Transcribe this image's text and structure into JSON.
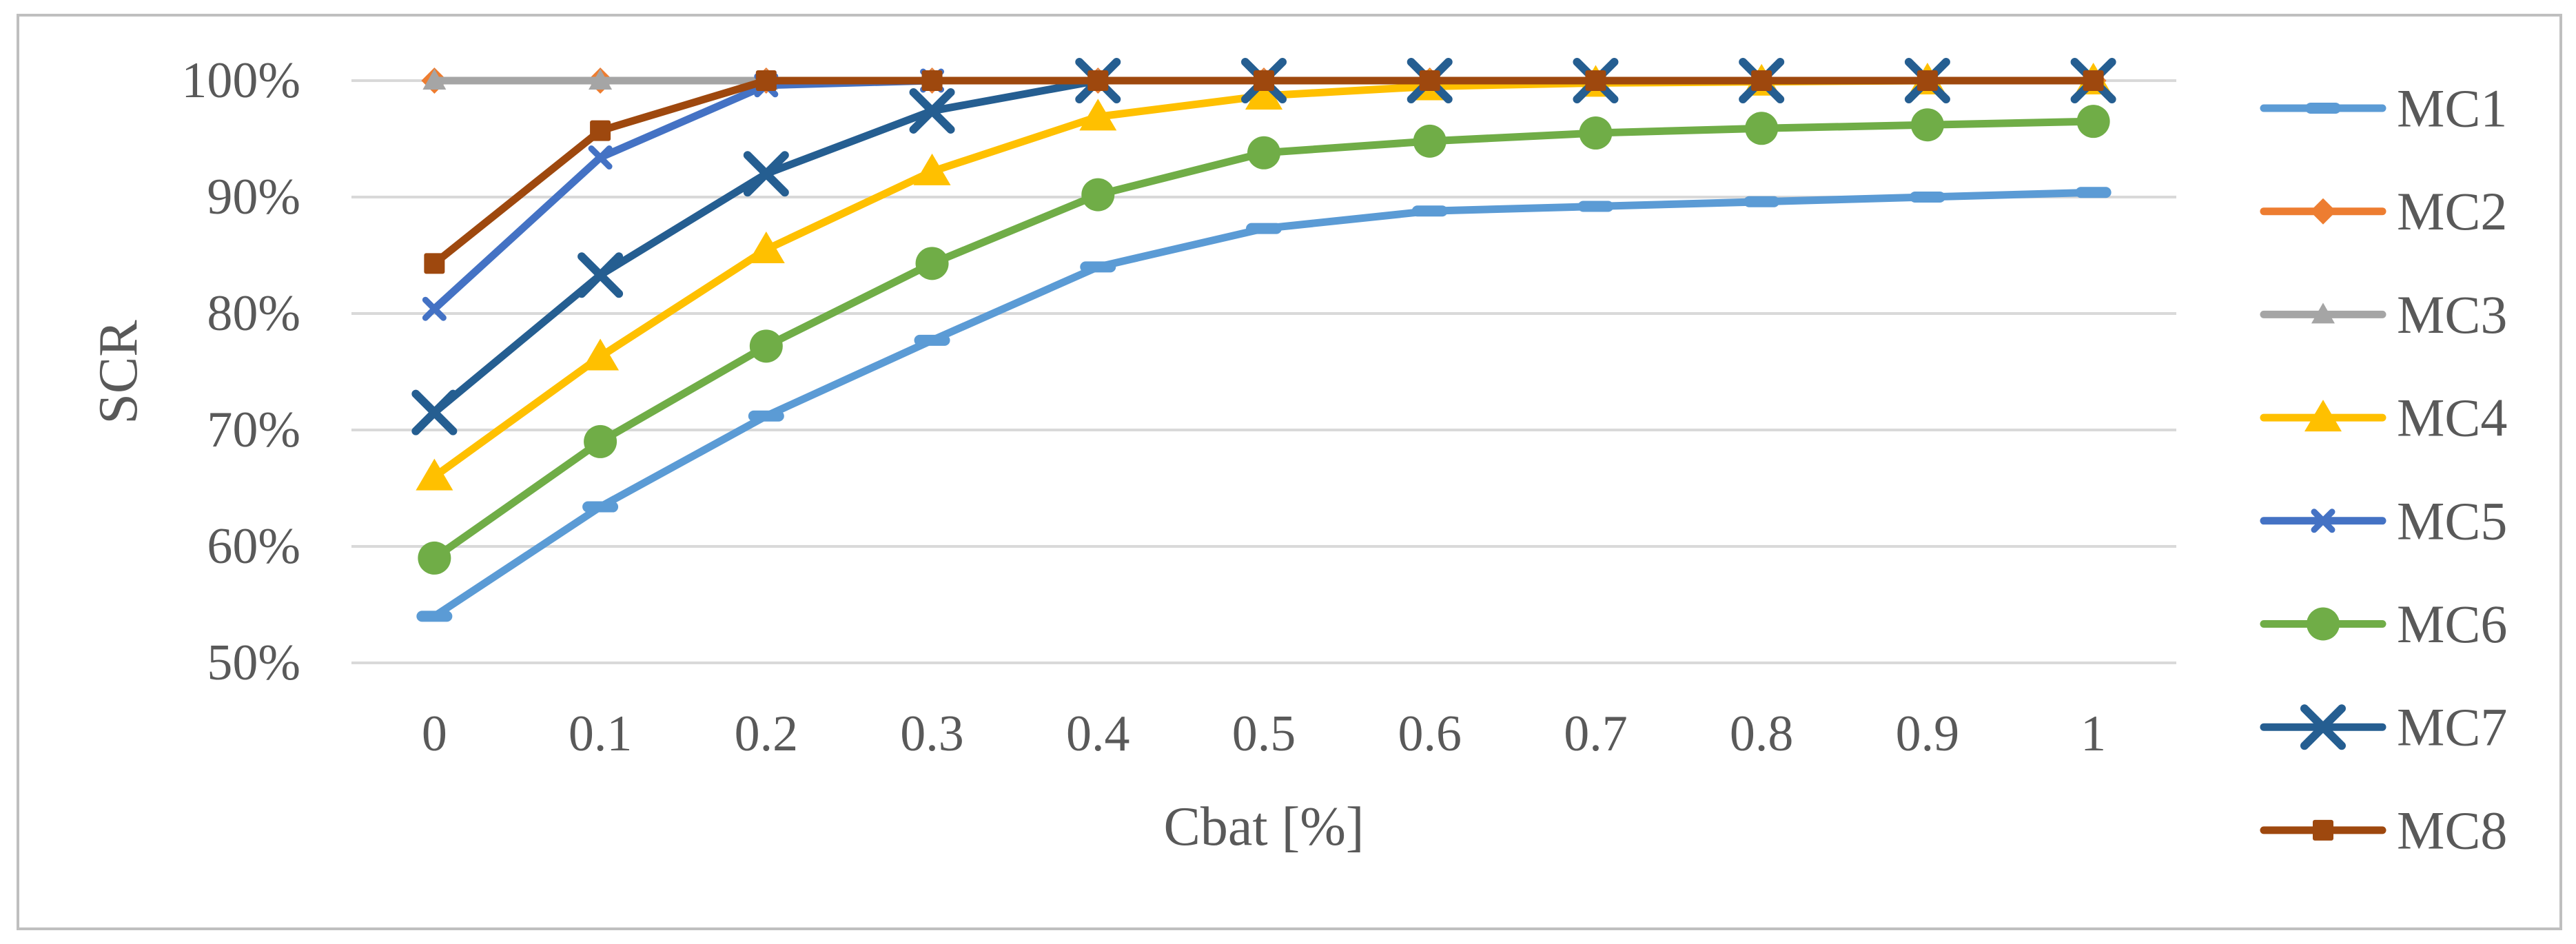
{
  "chart_data": {
    "type": "line",
    "title": "",
    "xlabel": "Cbat [%]",
    "ylabel": "SCR",
    "x_categories": [
      0,
      0.1,
      0.2,
      0.3,
      0.4,
      0.5,
      0.6,
      0.7,
      0.8,
      0.9,
      1
    ],
    "x_tick_labels": [
      "0",
      "0.1",
      "0.2",
      "0.3",
      "0.4",
      "0.5",
      "0.6",
      "0.7",
      "0.8",
      "0.9",
      "1"
    ],
    "y_tick_labels": [
      "100%",
      "90%",
      "80%",
      "70%",
      "60%",
      "50%"
    ],
    "y_gridline_values": [
      100,
      90,
      80,
      70,
      60,
      50
    ],
    "ylim": [
      50,
      100
    ],
    "grid": "horizontal",
    "legend_position": "right",
    "series": [
      {
        "name": "MC1",
        "color": "#5B9BD5",
        "marker": "dash",
        "values": [
          54.0,
          63.4,
          71.2,
          77.7,
          84.0,
          87.3,
          88.8,
          89.2,
          89.6,
          90.0,
          90.4
        ]
      },
      {
        "name": "MC2",
        "color": "#ED7D31",
        "marker": "diamond",
        "values": [
          100,
          100,
          100,
          100,
          100,
          100,
          100,
          100,
          100,
          100,
          100
        ]
      },
      {
        "name": "MC3",
        "color": "#A5A5A5",
        "marker": "triangle-small",
        "values": [
          100,
          100,
          100,
          100,
          100,
          100,
          100,
          100,
          100,
          100,
          100
        ]
      },
      {
        "name": "MC4",
        "color": "#FFC000",
        "marker": "triangle",
        "values": [
          66.0,
          76.3,
          85.5,
          92.2,
          96.9,
          98.7,
          99.5,
          99.8,
          99.9,
          100,
          100
        ]
      },
      {
        "name": "MC5",
        "color": "#4472C4",
        "marker": "x-small",
        "values": [
          80.4,
          93.4,
          99.6,
          100,
          100,
          100,
          100,
          100,
          100,
          100,
          100
        ]
      },
      {
        "name": "MC6",
        "color": "#70AD47",
        "marker": "circle",
        "values": [
          59.0,
          69.0,
          77.2,
          84.3,
          90.2,
          93.8,
          94.8,
          95.5,
          95.9,
          96.2,
          96.5
        ]
      },
      {
        "name": "MC7",
        "color": "#255E91",
        "marker": "x-large",
        "values": [
          71.5,
          83.3,
          92.0,
          97.4,
          100,
          100,
          100,
          100,
          100,
          100,
          100
        ]
      },
      {
        "name": "MC8",
        "color": "#9E480E",
        "marker": "square",
        "values": [
          84.3,
          95.7,
          100,
          100,
          100,
          100,
          100,
          100,
          100,
          100,
          100
        ]
      }
    ],
    "colors": {
      "gridline": "#D9D9D9",
      "frame": "#BFBFBF",
      "text": "#595959",
      "background": "#FFFFFF"
    }
  }
}
